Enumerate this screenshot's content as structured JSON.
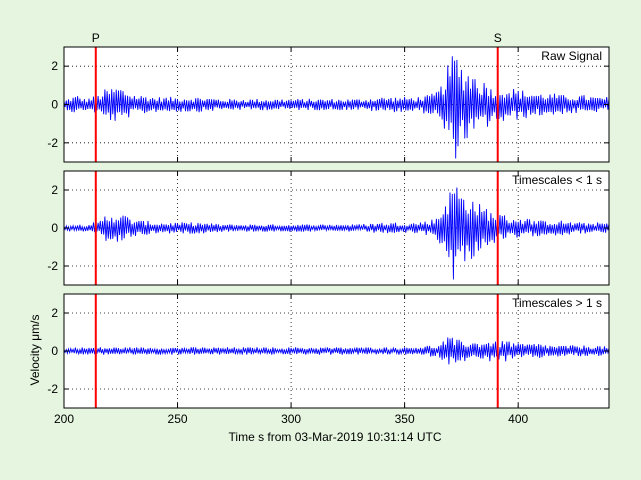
{
  "chart_data": {
    "type": "line",
    "xlabel": "Time s from 03-Mar-2019 10:31:14 UTC",
    "ylabel": "Velocity μm/s",
    "xlim": [
      200,
      440
    ],
    "xticks": [
      200,
      250,
      300,
      350,
      400
    ],
    "grid": true,
    "picks": [
      {
        "label": "P",
        "x": 214
      },
      {
        "label": "S",
        "x": 391
      }
    ],
    "colors": {
      "trace": "#0000ff",
      "pick": "#ff0000",
      "background": "#e5f5df",
      "axes_bg": "#ffffff"
    },
    "panels": [
      {
        "name": "Raw Signal",
        "legend_label": "Raw Signal",
        "ylim": [
          -3,
          3
        ],
        "yticks": [
          -2,
          0,
          2
        ],
        "series": {
          "x": [
            200,
            203,
            206,
            209,
            212,
            215,
            218,
            221,
            224,
            227,
            230,
            233,
            236,
            240,
            250,
            260,
            270,
            280,
            290,
            300,
            310,
            320,
            330,
            340,
            350,
            355,
            360,
            363,
            366,
            368,
            370,
            372,
            374,
            376,
            378,
            380,
            382,
            384,
            386,
            388,
            390,
            392,
            394,
            397,
            400,
            405,
            410,
            415,
            420,
            425,
            430,
            435,
            440
          ],
          "values": [
            0.2,
            -0.4,
            0.5,
            -0.3,
            0.4,
            -0.5,
            0.8,
            -0.9,
            1.0,
            -0.8,
            0.6,
            -0.5,
            0.5,
            -0.4,
            0.4,
            -0.4,
            0.3,
            -0.3,
            0.3,
            -0.3,
            0.3,
            -0.3,
            0.3,
            -0.4,
            0.4,
            -0.4,
            0.5,
            -0.6,
            1.0,
            -1.8,
            2.3,
            -3.0,
            2.4,
            -2.0,
            1.9,
            -1.8,
            1.6,
            -1.2,
            1.3,
            -1.0,
            0.9,
            -1.0,
            1.0,
            -0.9,
            0.8,
            -0.7,
            0.6,
            -0.6,
            0.5,
            -0.5,
            0.5,
            -0.4,
            0.4
          ]
        }
      },
      {
        "name": "Timescales < 1 s",
        "legend_label": "Timescales < 1 s",
        "ylim": [
          -3,
          3
        ],
        "yticks": [
          -2,
          0,
          2
        ],
        "series": {
          "x": [
            200,
            203,
            206,
            209,
            212,
            215,
            218,
            221,
            224,
            227,
            230,
            233,
            236,
            240,
            250,
            260,
            270,
            280,
            290,
            300,
            310,
            320,
            330,
            340,
            350,
            355,
            360,
            363,
            366,
            368,
            370,
            372,
            374,
            376,
            378,
            380,
            382,
            384,
            386,
            388,
            390,
            392,
            394,
            397,
            400,
            405,
            410,
            415,
            420,
            425,
            430,
            435,
            440
          ],
          "values": [
            0.1,
            -0.2,
            0.2,
            -0.2,
            0.3,
            -0.3,
            0.7,
            -0.8,
            0.8,
            -0.7,
            0.5,
            -0.4,
            0.4,
            -0.3,
            0.3,
            -0.3,
            0.2,
            -0.2,
            0.2,
            -0.2,
            0.2,
            -0.2,
            0.2,
            -0.3,
            0.3,
            -0.3,
            0.4,
            -0.5,
            0.9,
            -1.8,
            2.0,
            -3.0,
            2.1,
            -1.9,
            2.0,
            -1.6,
            1.5,
            -1.1,
            1.2,
            -0.9,
            0.8,
            -0.8,
            0.7,
            -0.6,
            0.6,
            -0.5,
            0.4,
            -0.4,
            0.4,
            -0.3,
            0.3,
            -0.3,
            0.3
          ]
        }
      },
      {
        "name": "Timescales > 1 s",
        "legend_label": "Timescales > 1 s",
        "ylim": [
          -3,
          3
        ],
        "yticks": [
          -2,
          0,
          2
        ],
        "series": {
          "x": [
            200,
            205,
            210,
            215,
            220,
            225,
            230,
            235,
            240,
            250,
            260,
            270,
            280,
            290,
            300,
            310,
            320,
            330,
            340,
            350,
            360,
            365,
            368,
            370,
            372,
            375,
            378,
            380,
            383,
            386,
            389,
            392,
            395,
            398,
            400,
            405,
            410,
            415,
            420,
            425,
            430,
            435,
            440
          ],
          "values": [
            0.1,
            -0.2,
            0.2,
            -0.2,
            0.2,
            -0.2,
            0.2,
            -0.2,
            0.2,
            -0.2,
            0.2,
            -0.2,
            0.2,
            -0.2,
            0.2,
            -0.2,
            0.2,
            -0.2,
            0.2,
            -0.2,
            0.3,
            -0.3,
            0.7,
            -0.8,
            0.6,
            -0.6,
            0.5,
            -0.5,
            0.5,
            -0.6,
            0.5,
            -0.5,
            0.6,
            -0.5,
            0.4,
            -0.4,
            0.4,
            -0.3,
            0.3,
            -0.3,
            0.3,
            -0.3,
            0.2
          ]
        }
      }
    ]
  }
}
